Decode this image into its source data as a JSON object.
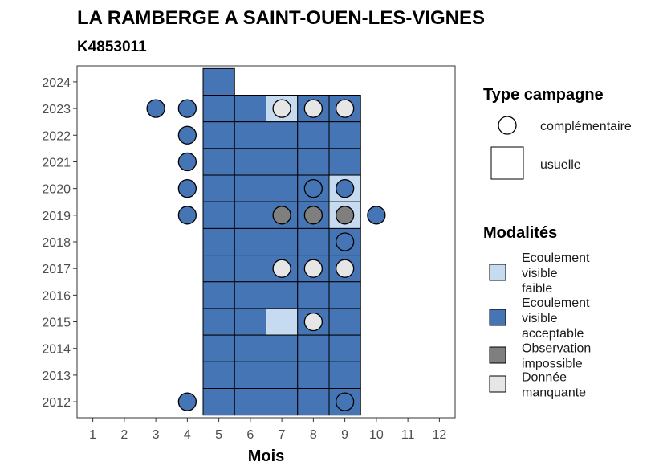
{
  "chart_data": {
    "type": "heatmap",
    "title": "LA RAMBERGE A SAINT-OUEN-LES-VIGNES",
    "subtitle": "K4853011",
    "xlabel": "Mois",
    "ylabel": "",
    "x_ticks": [
      "1",
      "2",
      "3",
      "4",
      "5",
      "6",
      "7",
      "8",
      "9",
      "10",
      "11",
      "12"
    ],
    "y_ticks": [
      "2012",
      "2013",
      "2014",
      "2015",
      "2016",
      "2017",
      "2018",
      "2019",
      "2020",
      "2021",
      "2022",
      "2023",
      "2024"
    ],
    "xlim": [
      0.5,
      12.5
    ],
    "ylim": [
      2011.4,
      2024.6
    ],
    "grid": false,
    "modalite_colors": {
      "faible": "#c6dbef",
      "acceptable": "#4575b4",
      "impossible": "#7f7f7f",
      "manquante": "#e6e6e6"
    },
    "usuelle": [
      {
        "year": 2024,
        "month": 5,
        "m": "acceptable"
      },
      {
        "year": 2023,
        "month": 5,
        "m": "acceptable"
      },
      {
        "year": 2023,
        "month": 6,
        "m": "acceptable"
      },
      {
        "year": 2023,
        "month": 7,
        "m": "faible"
      },
      {
        "year": 2023,
        "month": 8,
        "m": "acceptable"
      },
      {
        "year": 2023,
        "month": 9,
        "m": "acceptable"
      },
      {
        "year": 2022,
        "month": 5,
        "m": "acceptable"
      },
      {
        "year": 2022,
        "month": 6,
        "m": "acceptable"
      },
      {
        "year": 2022,
        "month": 7,
        "m": "acceptable"
      },
      {
        "year": 2022,
        "month": 8,
        "m": "acceptable"
      },
      {
        "year": 2022,
        "month": 9,
        "m": "acceptable"
      },
      {
        "year": 2021,
        "month": 5,
        "m": "acceptable"
      },
      {
        "year": 2021,
        "month": 6,
        "m": "acceptable"
      },
      {
        "year": 2021,
        "month": 7,
        "m": "acceptable"
      },
      {
        "year": 2021,
        "month": 8,
        "m": "acceptable"
      },
      {
        "year": 2021,
        "month": 9,
        "m": "acceptable"
      },
      {
        "year": 2020,
        "month": 5,
        "m": "acceptable"
      },
      {
        "year": 2020,
        "month": 6,
        "m": "acceptable"
      },
      {
        "year": 2020,
        "month": 7,
        "m": "acceptable"
      },
      {
        "year": 2020,
        "month": 8,
        "m": "acceptable"
      },
      {
        "year": 2020,
        "month": 9,
        "m": "faible"
      },
      {
        "year": 2019,
        "month": 5,
        "m": "acceptable"
      },
      {
        "year": 2019,
        "month": 6,
        "m": "acceptable"
      },
      {
        "year": 2019,
        "month": 7,
        "m": "acceptable"
      },
      {
        "year": 2019,
        "month": 8,
        "m": "acceptable"
      },
      {
        "year": 2019,
        "month": 9,
        "m": "faible"
      },
      {
        "year": 2018,
        "month": 5,
        "m": "acceptable"
      },
      {
        "year": 2018,
        "month": 6,
        "m": "acceptable"
      },
      {
        "year": 2018,
        "month": 7,
        "m": "acceptable"
      },
      {
        "year": 2018,
        "month": 8,
        "m": "acceptable"
      },
      {
        "year": 2018,
        "month": 9,
        "m": "acceptable"
      },
      {
        "year": 2017,
        "month": 5,
        "m": "acceptable"
      },
      {
        "year": 2017,
        "month": 6,
        "m": "acceptable"
      },
      {
        "year": 2017,
        "month": 7,
        "m": "acceptable"
      },
      {
        "year": 2017,
        "month": 8,
        "m": "acceptable"
      },
      {
        "year": 2017,
        "month": 9,
        "m": "acceptable"
      },
      {
        "year": 2016,
        "month": 5,
        "m": "acceptable"
      },
      {
        "year": 2016,
        "month": 6,
        "m": "acceptable"
      },
      {
        "year": 2016,
        "month": 7,
        "m": "acceptable"
      },
      {
        "year": 2016,
        "month": 8,
        "m": "acceptable"
      },
      {
        "year": 2016,
        "month": 9,
        "m": "acceptable"
      },
      {
        "year": 2015,
        "month": 5,
        "m": "acceptable"
      },
      {
        "year": 2015,
        "month": 6,
        "m": "acceptable"
      },
      {
        "year": 2015,
        "month": 7,
        "m": "faible"
      },
      {
        "year": 2015,
        "month": 8,
        "m": "acceptable"
      },
      {
        "year": 2015,
        "month": 9,
        "m": "acceptable"
      },
      {
        "year": 2014,
        "month": 5,
        "m": "acceptable"
      },
      {
        "year": 2014,
        "month": 6,
        "m": "acceptable"
      },
      {
        "year": 2014,
        "month": 7,
        "m": "acceptable"
      },
      {
        "year": 2014,
        "month": 8,
        "m": "acceptable"
      },
      {
        "year": 2014,
        "month": 9,
        "m": "acceptable"
      },
      {
        "year": 2013,
        "month": 5,
        "m": "acceptable"
      },
      {
        "year": 2013,
        "month": 6,
        "m": "acceptable"
      },
      {
        "year": 2013,
        "month": 7,
        "m": "acceptable"
      },
      {
        "year": 2013,
        "month": 8,
        "m": "acceptable"
      },
      {
        "year": 2013,
        "month": 9,
        "m": "acceptable"
      },
      {
        "year": 2012,
        "month": 5,
        "m": "acceptable"
      },
      {
        "year": 2012,
        "month": 6,
        "m": "acceptable"
      },
      {
        "year": 2012,
        "month": 7,
        "m": "acceptable"
      },
      {
        "year": 2012,
        "month": 8,
        "m": "acceptable"
      },
      {
        "year": 2012,
        "month": 9,
        "m": "acceptable"
      }
    ],
    "complementaire": [
      {
        "year": 2023,
        "month": 3,
        "m": "acceptable"
      },
      {
        "year": 2023,
        "month": 4,
        "m": "acceptable"
      },
      {
        "year": 2023,
        "month": 7,
        "m": "manquante"
      },
      {
        "year": 2023,
        "month": 8,
        "m": "manquante"
      },
      {
        "year": 2023,
        "month": 9,
        "m": "manquante"
      },
      {
        "year": 2022,
        "month": 4,
        "m": "acceptable"
      },
      {
        "year": 2021,
        "month": 4,
        "m": "acceptable"
      },
      {
        "year": 2020,
        "month": 4,
        "m": "acceptable"
      },
      {
        "year": 2020,
        "month": 8,
        "m": "acceptable"
      },
      {
        "year": 2020,
        "month": 9,
        "m": "acceptable"
      },
      {
        "year": 2019,
        "month": 4,
        "m": "acceptable"
      },
      {
        "year": 2019,
        "month": 7,
        "m": "impossible"
      },
      {
        "year": 2019,
        "month": 8,
        "m": "impossible"
      },
      {
        "year": 2019,
        "month": 9,
        "m": "impossible"
      },
      {
        "year": 2019,
        "month": 10,
        "m": "acceptable"
      },
      {
        "year": 2018,
        "month": 9,
        "m": "acceptable"
      },
      {
        "year": 2017,
        "month": 7,
        "m": "manquante"
      },
      {
        "year": 2017,
        "month": 8,
        "m": "manquante"
      },
      {
        "year": 2017,
        "month": 9,
        "m": "manquante"
      },
      {
        "year": 2015,
        "month": 8,
        "m": "manquante"
      },
      {
        "year": 2012,
        "month": 4,
        "m": "acceptable"
      },
      {
        "year": 2012,
        "month": 9,
        "m": "acceptable"
      }
    ],
    "legend": {
      "placement": "right",
      "type_title": "Type campagne",
      "type_items": [
        {
          "shape": "circle",
          "label": "complémentaire"
        },
        {
          "shape": "square",
          "label": "usuelle"
        }
      ],
      "modalites_title": "Modalités",
      "modalite_items": [
        {
          "key": "faible",
          "lines": [
            "Ecoulement",
            "visible",
            "faible"
          ]
        },
        {
          "key": "acceptable",
          "lines": [
            "Ecoulement",
            "visible",
            "acceptable"
          ]
        },
        {
          "key": "impossible",
          "lines": [
            "Observation",
            "impossible"
          ]
        },
        {
          "key": "manquante",
          "lines": [
            "Donnée",
            "manquante"
          ]
        }
      ]
    }
  }
}
